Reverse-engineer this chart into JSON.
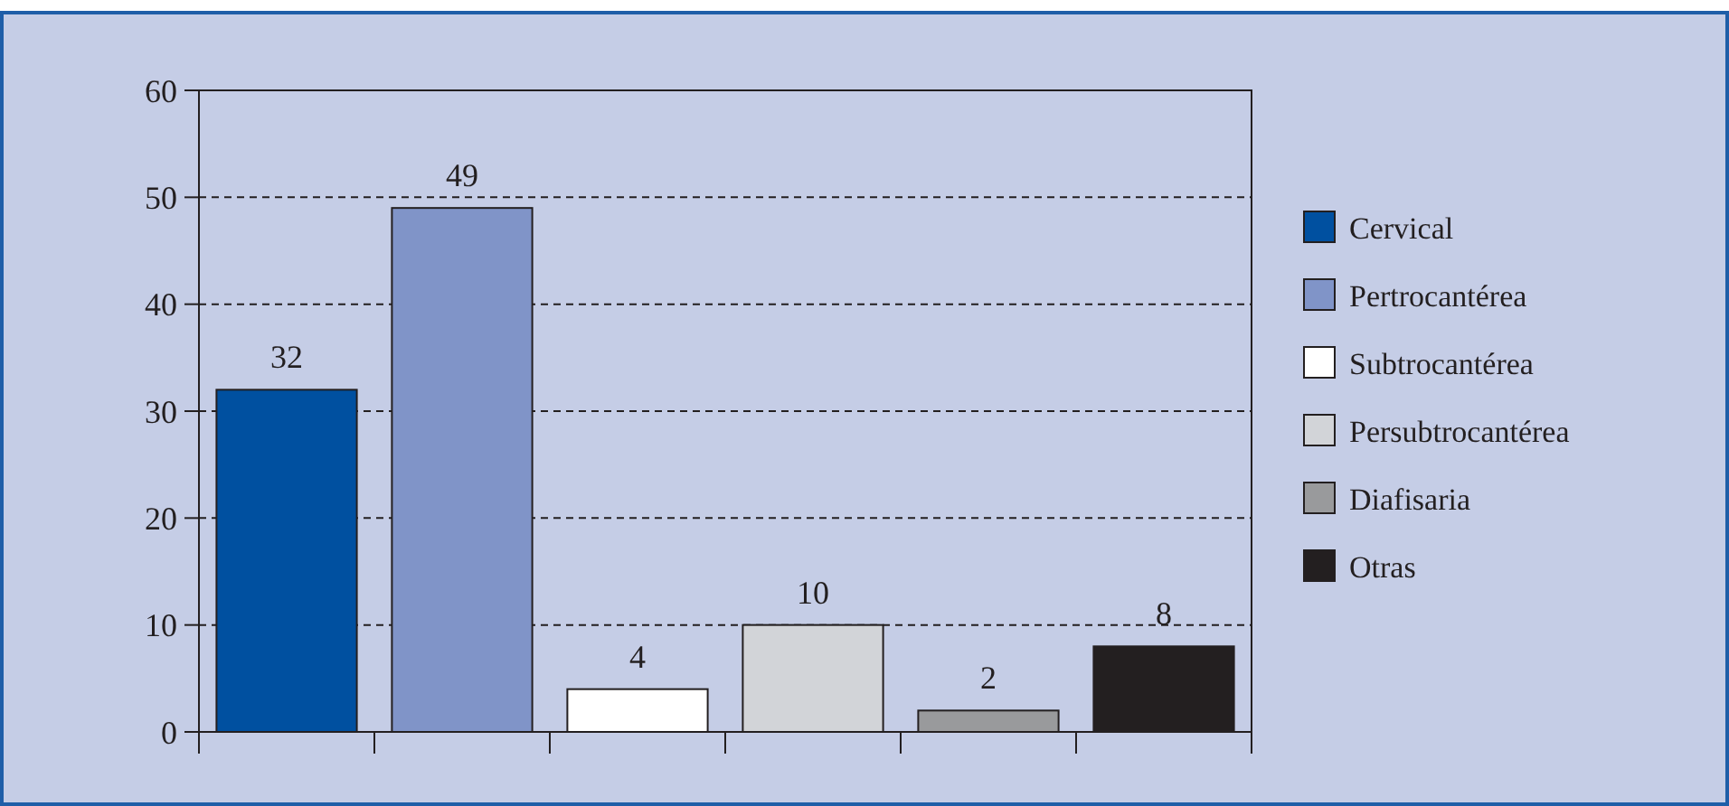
{
  "chart_data": {
    "type": "bar",
    "categories": [
      null,
      null,
      null,
      null,
      null,
      null
    ],
    "series": [
      {
        "name": "Cervical",
        "color": "#0050a0",
        "values": [
          32,
          null,
          null,
          null,
          null,
          null
        ]
      },
      {
        "name": "Pertrocantérea",
        "color": "#8094c8",
        "values": [
          null,
          49,
          null,
          null,
          null,
          null
        ]
      },
      {
        "name": "Subtrocantérea",
        "color": "#ffffff",
        "values": [
          null,
          null,
          4,
          null,
          null,
          null
        ]
      },
      {
        "name": "Persubtrocantérea",
        "color": "#d2d4d8",
        "values": [
          null,
          null,
          null,
          10,
          null,
          null
        ]
      },
      {
        "name": "Diafisaria",
        "color": "#999a9c",
        "values": [
          null,
          null,
          null,
          null,
          2,
          null
        ]
      },
      {
        "name": "Otras",
        "color": "#231f20",
        "values": [
          null,
          null,
          null,
          null,
          null,
          8
        ]
      }
    ],
    "ylim": [
      0,
      60
    ],
    "yticks": [
      0,
      10,
      20,
      30,
      40,
      50,
      60
    ],
    "grid": "y",
    "legend": "right",
    "tick_labels": "y",
    "data_labels": true
  }
}
